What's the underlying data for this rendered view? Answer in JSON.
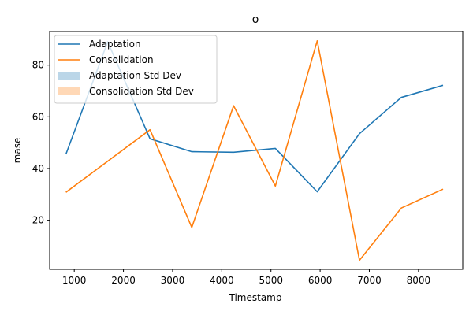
{
  "chart_data": {
    "type": "line",
    "title": "o",
    "xlabel": "Timestamp",
    "ylabel": "mase",
    "xlim": [
      500,
      8900
    ],
    "ylim": [
      1,
      93
    ],
    "xticks": [
      1000,
      2000,
      3000,
      4000,
      5000,
      6000,
      7000,
      8000
    ],
    "yticks": [
      20,
      40,
      60,
      80
    ],
    "grid": false,
    "legend_position": "top-left",
    "series": [
      {
        "name": "Adaptation",
        "color": "#1f77b4",
        "x": [
          830,
          1680,
          2540,
          3390,
          4240,
          5090,
          5940,
          6800,
          7650,
          8500
        ],
        "y": [
          45.5,
          89.0,
          51.5,
          46.5,
          46.3,
          47.8,
          31.0,
          53.5,
          67.5,
          72.2
        ]
      },
      {
        "name": "Consolidation",
        "color": "#ff7f0e",
        "x": [
          830,
          2540,
          3390,
          4240,
          5090,
          5940,
          6800,
          7650,
          8500
        ],
        "y": [
          30.8,
          55.0,
          17.2,
          64.3,
          33.2,
          89.4,
          4.5,
          24.7,
          32.0
        ]
      }
    ],
    "legend": [
      {
        "label": "Adaptation",
        "kind": "line",
        "color": "#1f77b4"
      },
      {
        "label": "Consolidation",
        "kind": "line",
        "color": "#ff7f0e"
      },
      {
        "label": "Adaptation Std Dev",
        "kind": "patch",
        "color": "#1f77b4"
      },
      {
        "label": "Consolidation Std Dev",
        "kind": "patch",
        "color": "#ff7f0e"
      }
    ]
  }
}
